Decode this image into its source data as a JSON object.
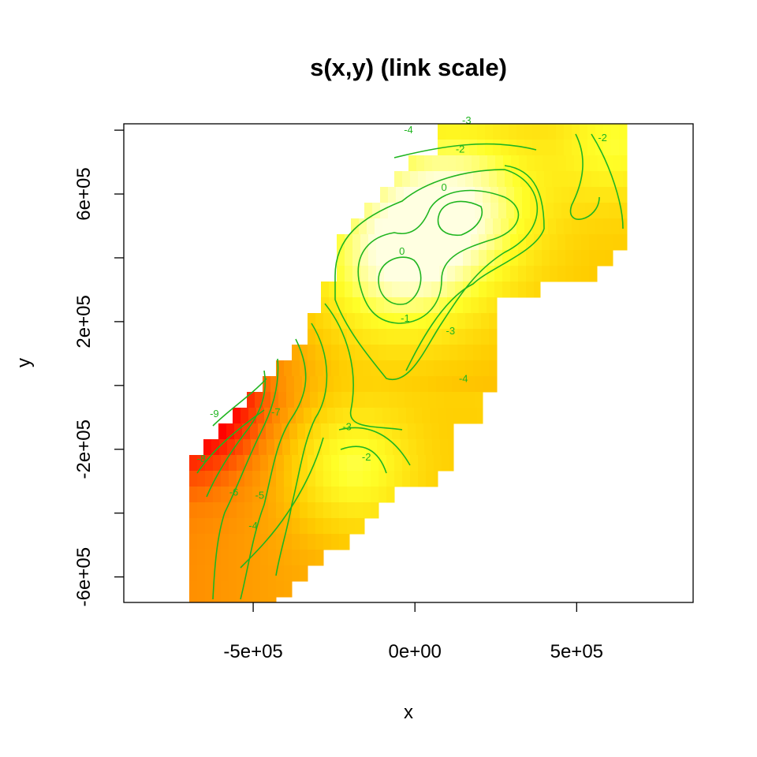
{
  "chart_data": {
    "type": "heatmap",
    "title": "s(x,y) (link scale)",
    "xlabel": "x",
    "ylabel": "y",
    "xlim": [
      -900000,
      860000
    ],
    "ylim": [
      -680000,
      820000
    ],
    "x_ticks": [
      {
        "value": -500000,
        "label": "-5e+05"
      },
      {
        "value": 0,
        "label": "0e+00"
      },
      {
        "value": 500000,
        "label": "5e+05"
      }
    ],
    "y_ticks": [
      {
        "value": -600000,
        "label": "-6e+05"
      },
      {
        "value": -400000,
        "label": ""
      },
      {
        "value": -200000,
        "label": "-2e+05"
      },
      {
        "value": 0,
        "label": ""
      },
      {
        "value": 200000,
        "label": "2e+05"
      },
      {
        "value": 400000,
        "label": ""
      },
      {
        "value": 600000,
        "label": "6e+05"
      },
      {
        "value": 800000,
        "label": ""
      }
    ],
    "color_scale": [
      "#ff0000",
      "#ff8000",
      "#ffd000",
      "#ffff20",
      "#ffffe0"
    ],
    "value_range": [
      -9,
      0.5
    ],
    "grid": false,
    "contour_labels": [
      {
        "x": -20000,
        "y": 800000,
        "label": "-4"
      },
      {
        "x": 160000,
        "y": 830000,
        "label": "-3"
      },
      {
        "x": 580000,
        "y": 775000,
        "label": "-2"
      },
      {
        "x": 140000,
        "y": 740000,
        "label": "-2"
      },
      {
        "x": 90000,
        "y": 620000,
        "label": "0"
      },
      {
        "x": -40000,
        "y": 420000,
        "label": "0"
      },
      {
        "x": -30000,
        "y": 210000,
        "label": "-1"
      },
      {
        "x": 110000,
        "y": 170000,
        "label": "-3"
      },
      {
        "x": 150000,
        "y": 20000,
        "label": "-4"
      },
      {
        "x": -210000,
        "y": -130000,
        "label": "-3"
      },
      {
        "x": -150000,
        "y": -225000,
        "label": "-2"
      },
      {
        "x": -620000,
        "y": -90000,
        "label": "-9"
      },
      {
        "x": -430000,
        "y": -85000,
        "label": "-7"
      },
      {
        "x": -660000,
        "y": -230000,
        "label": "-8"
      },
      {
        "x": -560000,
        "y": -335000,
        "label": "-6"
      },
      {
        "x": -480000,
        "y": -345000,
        "label": "-5"
      },
      {
        "x": -500000,
        "y": -440000,
        "label": "-4"
      }
    ]
  }
}
